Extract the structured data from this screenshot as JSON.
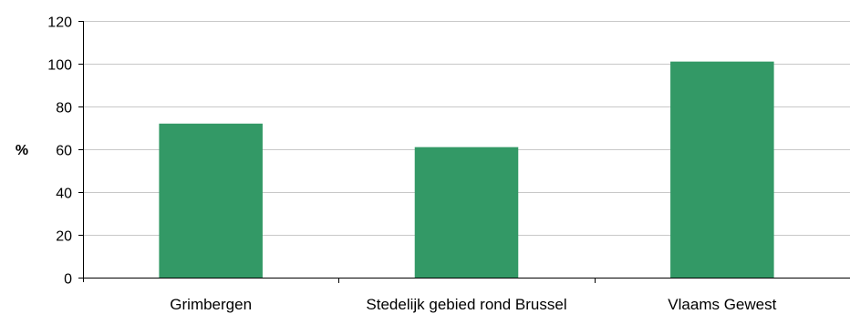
{
  "chart_data": {
    "type": "bar",
    "categories": [
      "Grimbergen",
      "Stedelijk gebied rond Brussel",
      "Vlaams Gewest"
    ],
    "values": [
      72,
      61,
      101
    ],
    "ylabel": "%",
    "ylim": [
      0,
      120
    ],
    "yticks": [
      0,
      20,
      40,
      60,
      80,
      100,
      120
    ],
    "grid": true,
    "bar_color": "#339966",
    "grid_color": "#c8c8c8"
  }
}
